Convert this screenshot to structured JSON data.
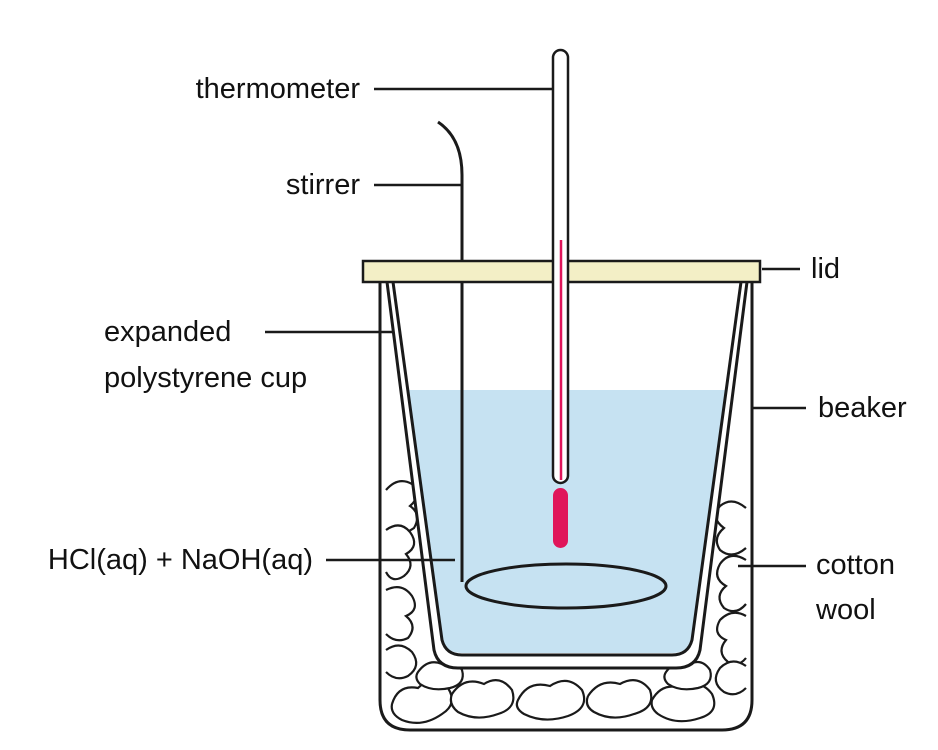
{
  "labels": {
    "thermometer": "thermometer",
    "stirrer": "stirrer",
    "lid": "lid",
    "cup_line1": "expanded",
    "cup_line2": "polystyrene cup",
    "beaker": "beaker",
    "solution": "HCl(aq) + NaOH(aq)",
    "cotton_line1": "cotton",
    "cotton_line2": "wool"
  },
  "colors": {
    "solution": "#c6e2f2",
    "lid": "#f3efc6",
    "thermometer_liquid": "#e0155a",
    "outline": "#1a1a1a"
  }
}
